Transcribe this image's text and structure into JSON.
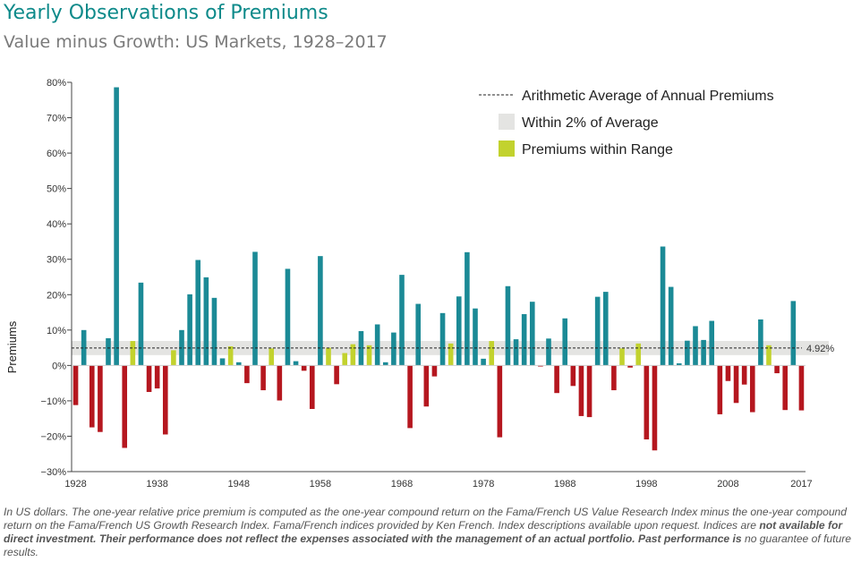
{
  "title": "Yearly Observations of Premiums",
  "subtitle": "Value minus Growth: US Markets, 1928–2017",
  "colors": {
    "positive": "#1b8a96",
    "negative": "#b5171f",
    "in_range": "#c2d22e",
    "band": "#e4e4e2",
    "axis": "#444444",
    "title": "#0e8a8a"
  },
  "chart_data": {
    "type": "bar",
    "ylabel": "Premiums",
    "ylim": [
      -30,
      80
    ],
    "yticks": [
      -30,
      -20,
      -10,
      0,
      10,
      20,
      30,
      40,
      50,
      60,
      70,
      80
    ],
    "ytick_labels": [
      "−30%",
      "−20%",
      "−10%",
      "0%",
      "10%",
      "20%",
      "30%",
      "40%",
      "50%",
      "60%",
      "70%",
      "80%"
    ],
    "xtick_labels": [
      "1928",
      "1938",
      "1948",
      "1958",
      "1968",
      "1978",
      "1988",
      "1998",
      "2008",
      "2017"
    ],
    "average": 4.92,
    "average_label": "4.92%",
    "band": [
      2.92,
      6.92
    ],
    "legend": {
      "average": "Arithmetic Average of Annual Premiums",
      "band": "Within 2% of Average",
      "in_range": "Premiums within Range"
    },
    "years": [
      1928,
      1929,
      1930,
      1931,
      1932,
      1933,
      1934,
      1935,
      1936,
      1937,
      1938,
      1939,
      1940,
      1941,
      1942,
      1943,
      1944,
      1945,
      1946,
      1947,
      1948,
      1949,
      1950,
      1951,
      1952,
      1953,
      1954,
      1955,
      1956,
      1957,
      1958,
      1959,
      1960,
      1961,
      1962,
      1963,
      1964,
      1965,
      1966,
      1967,
      1968,
      1969,
      1970,
      1971,
      1972,
      1973,
      1974,
      1975,
      1976,
      1977,
      1978,
      1979,
      1980,
      1981,
      1982,
      1983,
      1984,
      1985,
      1986,
      1987,
      1988,
      1989,
      1990,
      1991,
      1992,
      1993,
      1994,
      1995,
      1996,
      1997,
      1998,
      1999,
      2000,
      2001,
      2002,
      2003,
      2004,
      2005,
      2006,
      2007,
      2008,
      2009,
      2010,
      2011,
      2012,
      2013,
      2014,
      2015,
      2016,
      2017
    ],
    "values": [
      -11.2,
      10.0,
      -17.5,
      -18.8,
      7.7,
      78.6,
      -23.3,
      6.9,
      23.4,
      -7.5,
      -6.5,
      -19.5,
      4.3,
      10.0,
      20.1,
      29.8,
      24.9,
      19.1,
      2.0,
      5.4,
      0.9,
      -5.0,
      32.1,
      -7.0,
      4.8,
      -9.9,
      27.3,
      1.2,
      -1.5,
      -12.3,
      30.9,
      5.0,
      -5.3,
      3.5,
      6.0,
      9.7,
      5.7,
      11.6,
      0.9,
      9.3,
      25.6,
      -17.7,
      17.4,
      -11.6,
      -3.1,
      14.8,
      6.2,
      19.5,
      32.0,
      16.1,
      1.9,
      6.9,
      -20.3,
      22.4,
      7.4,
      14.5,
      18.0,
      -0.3,
      7.6,
      -7.8,
      13.3,
      -5.8,
      -14.3,
      -14.6,
      19.4,
      20.8,
      -7.0,
      4.8,
      -0.6,
      6.2,
      -20.9,
      -24.0,
      33.6,
      22.2,
      0.6,
      7.0,
      11.1,
      7.2,
      12.6,
      -13.8,
      -4.4,
      -10.6,
      -5.4,
      -13.2,
      13.0,
      5.7,
      -2.2,
      -12.6,
      18.2,
      -12.7
    ]
  },
  "footnote": {
    "part1": "In US dollars. The one-year relative price premium is computed as the one-year compound return on the Fama/French US Value Research Index minus the one-year compound return on the Fama/French US Growth Research Index. Fama/French indices provided by Ken French. Index descriptions available upon request. Indices are",
    "part2": "not available for direct investment. Their performance does not reflect the expenses associated with the management of an actual portfolio. Past performance is",
    "part3": "no guarantee of future results."
  }
}
